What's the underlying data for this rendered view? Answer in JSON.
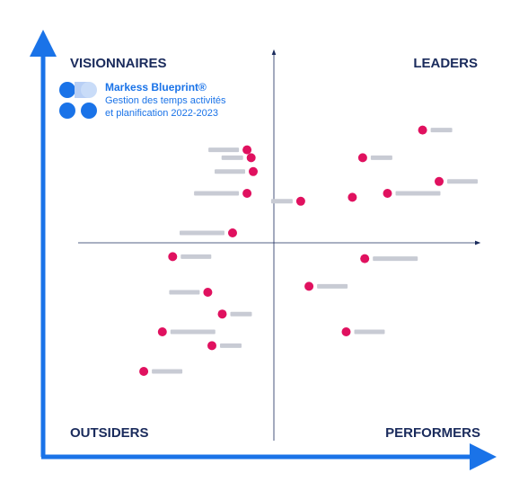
{
  "chart_data": {
    "type": "scatter",
    "title": "Markess Blueprint®",
    "subtitle": [
      "Gestion des temps activités",
      "et planification 2022-2023"
    ],
    "quadrants": {
      "top_left": "VISIONNAIRES",
      "top_right": "LEADERS",
      "bottom_left": "OUTSIDERS",
      "bottom_right": "PERFORMERS"
    },
    "color": "#e0115f",
    "xlim": [
      -100,
      100
    ],
    "ylim": [
      -100,
      100
    ],
    "x": [
      72,
      43,
      80,
      55,
      38,
      13,
      -13,
      -11,
      -10,
      -13,
      -20,
      -49,
      44,
      17,
      -32,
      -25,
      -54,
      35,
      -30,
      -63
    ],
    "values": [
      57,
      43,
      31,
      25,
      23,
      21,
      47,
      43,
      36,
      25,
      5,
      -7,
      -8,
      -22,
      -25,
      -36,
      -45,
      -45,
      -52,
      -65
    ]
  }
}
